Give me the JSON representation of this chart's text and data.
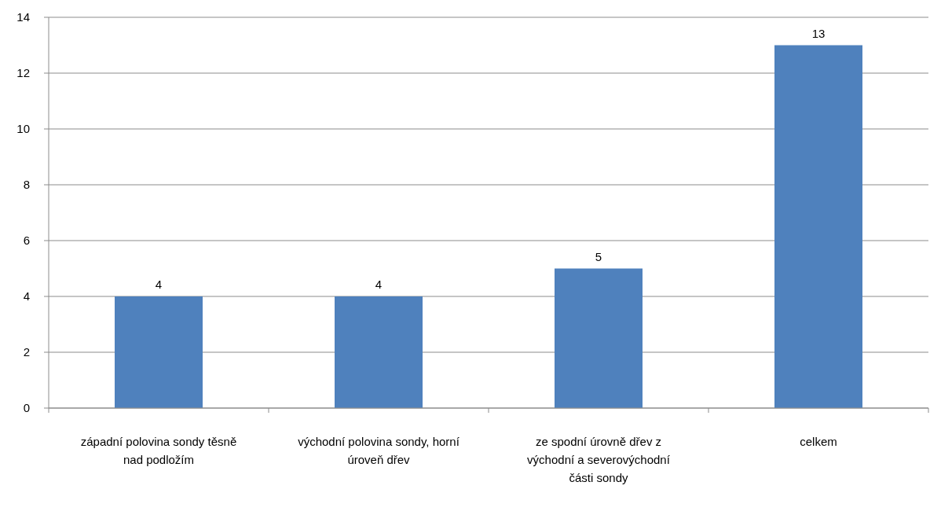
{
  "chart_data": {
    "type": "bar",
    "categories": [
      "západní polovina sondy těsně nad podložím",
      "východní polovina sondy, horní úroveň dřev",
      "ze spodní úrovně dřev z východní a severovýchodní části sondy",
      "celkem"
    ],
    "values": [
      4,
      4,
      5,
      13
    ],
    "color": "#4f81bd",
    "ylim": [
      0,
      14
    ],
    "yticks": [
      0,
      2,
      4,
      6,
      8,
      10,
      12,
      14
    ],
    "grid": "y",
    "data_labels": true
  }
}
